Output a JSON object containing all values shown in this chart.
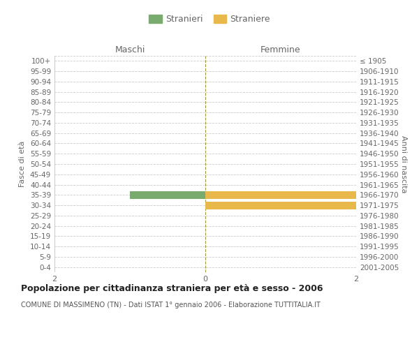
{
  "age_groups": [
    "0-4",
    "5-9",
    "10-14",
    "15-19",
    "20-24",
    "25-29",
    "30-34",
    "35-39",
    "40-44",
    "45-49",
    "50-54",
    "55-59",
    "60-64",
    "65-69",
    "70-74",
    "75-79",
    "80-84",
    "85-89",
    "90-94",
    "95-99",
    "100+"
  ],
  "birth_years": [
    "2001-2005",
    "1996-2000",
    "1991-1995",
    "1986-1990",
    "1981-1985",
    "1976-1980",
    "1971-1975",
    "1966-1970",
    "1961-1965",
    "1956-1960",
    "1951-1955",
    "1946-1950",
    "1941-1945",
    "1936-1940",
    "1931-1935",
    "1926-1930",
    "1921-1925",
    "1916-1920",
    "1911-1915",
    "1906-1910",
    "≤ 1905"
  ],
  "males": [
    0,
    0,
    0,
    0,
    0,
    0,
    0,
    1,
    0,
    0,
    0,
    0,
    0,
    0,
    0,
    0,
    0,
    0,
    0,
    0,
    0
  ],
  "females": [
    0,
    0,
    0,
    0,
    0,
    0,
    2,
    2,
    0,
    0,
    0,
    0,
    0,
    0,
    0,
    0,
    0,
    0,
    0,
    0,
    0
  ],
  "male_color": "#7aab6e",
  "female_color": "#e8b84b",
  "xlim": 2,
  "title": "Popolazione per cittadinanza straniera per età e sesso - 2006",
  "subtitle": "COMUNE DI MASSIMENO (TN) - Dati ISTAT 1° gennaio 2006 - Elaborazione TUTTITALIA.IT",
  "ylabel_left": "Fasce di età",
  "ylabel_right": "Anni di nascita",
  "legend_male": "Stranieri",
  "legend_female": "Straniere",
  "maschi_label": "Maschi",
  "femmine_label": "Femmine",
  "background_color": "#ffffff",
  "grid_color": "#cccccc",
  "text_color": "#666666",
  "center_line_color": "#999933"
}
